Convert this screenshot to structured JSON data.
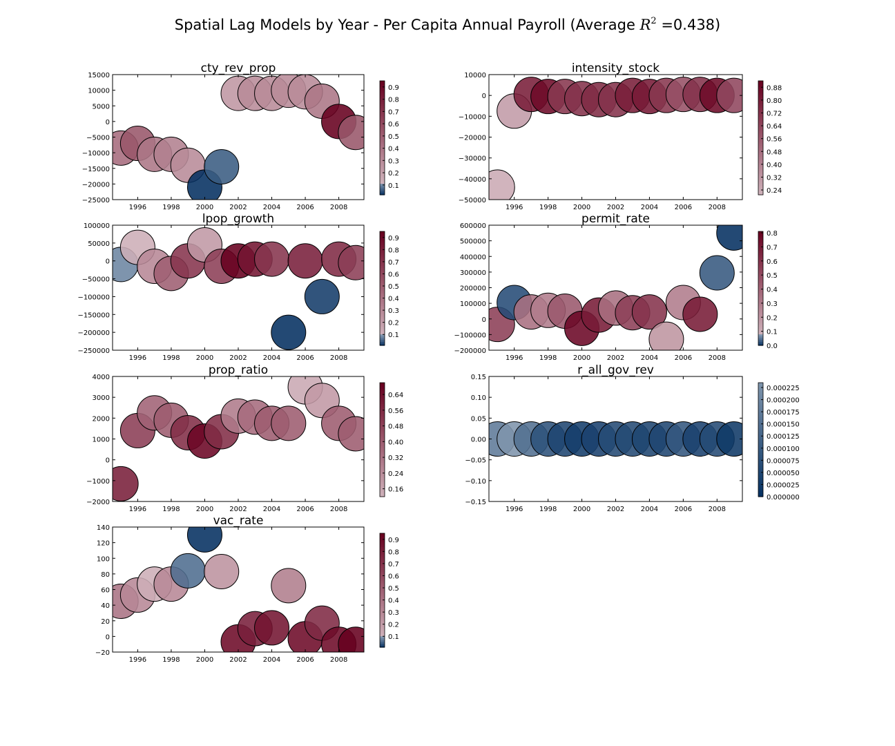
{
  "figure": {
    "suptitle_text": "Spatial Lag Models by Year - Per Capita Annual Payroll  (Average ",
    "suptitle_r": "R",
    "suptitle_exp": "2",
    "suptitle_value": " =0.438)"
  },
  "colormap": {
    "low": "#053061",
    "mid": "#f7f7f7",
    "high": "#67001f"
  },
  "chart_data": [
    {
      "type": "scatter",
      "title": "cty_rev_prop",
      "xlim": [
        1994.5,
        2009.5
      ],
      "ylim": [
        -25000,
        15000
      ],
      "xticks": [
        1996,
        1998,
        2000,
        2002,
        2004,
        2006,
        2008
      ],
      "xtick_labels": [
        "1996",
        "1998",
        "2000",
        "2002",
        "2004",
        "2006",
        "2008"
      ],
      "yticks": [
        -25000,
        -20000,
        -15000,
        -10000,
        -5000,
        0,
        5000,
        10000,
        15000
      ],
      "ytick_labels": [
        "−25000",
        "−20000",
        "−15000",
        "−10000",
        "−5000",
        "0",
        "5000",
        "10000",
        "15000"
      ],
      "points": [
        {
          "x": 1995,
          "y": -8500,
          "c": 0.45
        },
        {
          "x": 1996,
          "y": -7000,
          "c": 0.55
        },
        {
          "x": 1997,
          "y": -10500,
          "c": 0.4
        },
        {
          "x": 1998,
          "y": -10500,
          "c": 0.35
        },
        {
          "x": 1999,
          "y": -14000,
          "c": 0.3
        },
        {
          "x": 2000,
          "y": -21000,
          "c": 0.02
        },
        {
          "x": 2001,
          "y": -14500,
          "c": 0.06
        },
        {
          "x": 2002,
          "y": 9000,
          "c": 0.25
        },
        {
          "x": 2003,
          "y": 9000,
          "c": 0.3
        },
        {
          "x": 2004,
          "y": 9000,
          "c": 0.3
        },
        {
          "x": 2005,
          "y": 10000,
          "c": 0.3
        },
        {
          "x": 2006,
          "y": 9500,
          "c": 0.3
        },
        {
          "x": 2007,
          "y": 6500,
          "c": 0.4
        },
        {
          "x": 2008,
          "y": 0,
          "c": 0.95
        },
        {
          "x": 2009,
          "y": -3500,
          "c": 0.55
        }
      ],
      "colorbar": {
        "ticks": [
          0.1,
          0.2,
          0.3,
          0.4,
          0.5,
          0.6,
          0.7,
          0.8,
          0.9
        ],
        "tick_labels": [
          "0.1",
          "0.2",
          "0.3",
          "0.4",
          "0.5",
          "0.6",
          "0.7",
          "0.8",
          "0.9"
        ],
        "range": [
          0.02,
          0.95
        ],
        "split": 0.12
      }
    },
    {
      "type": "scatter",
      "title": "intensity_stock",
      "xlim": [
        1994.5,
        2009.5
      ],
      "ylim": [
        -50000,
        10000
      ],
      "xticks": [
        1996,
        1998,
        2000,
        2002,
        2004,
        2006,
        2008
      ],
      "xtick_labels": [
        "1996",
        "1998",
        "2000",
        "2002",
        "2004",
        "2006",
        "2008"
      ],
      "yticks": [
        -50000,
        -40000,
        -30000,
        -20000,
        -10000,
        0,
        10000
      ],
      "ytick_labels": [
        "−50000",
        "−40000",
        "−30000",
        "−20000",
        "−10000",
        "0",
        "10000"
      ],
      "points": [
        {
          "x": 1995,
          "y": -44000,
          "c": 0.24
        },
        {
          "x": 1996,
          "y": -7500,
          "c": 0.3
        },
        {
          "x": 1997,
          "y": 500,
          "c": 0.8
        },
        {
          "x": 1998,
          "y": -500,
          "c": 0.88
        },
        {
          "x": 1999,
          "y": -500,
          "c": 0.7
        },
        {
          "x": 2000,
          "y": -1500,
          "c": 0.72
        },
        {
          "x": 2001,
          "y": -2000,
          "c": 0.75
        },
        {
          "x": 2002,
          "y": -2000,
          "c": 0.72
        },
        {
          "x": 2003,
          "y": 0,
          "c": 0.8
        },
        {
          "x": 2004,
          "y": -500,
          "c": 0.82
        },
        {
          "x": 2005,
          "y": 0,
          "c": 0.7
        },
        {
          "x": 2006,
          "y": 500,
          "c": 0.6
        },
        {
          "x": 2007,
          "y": 500,
          "c": 0.72
        },
        {
          "x": 2008,
          "y": 0,
          "c": 0.88
        },
        {
          "x": 2009,
          "y": 0,
          "c": 0.64
        }
      ],
      "colorbar": {
        "ticks": [
          0.24,
          0.32,
          0.4,
          0.48,
          0.56,
          0.64,
          0.72,
          0.8,
          0.88
        ],
        "tick_labels": [
          "0.24",
          "0.32",
          "0.40",
          "0.48",
          "0.56",
          "0.64",
          "0.72",
          "0.80",
          "0.88"
        ],
        "range": [
          0.21,
          0.92
        ],
        "split": null
      }
    },
    {
      "type": "scatter",
      "title": "lpop_growth",
      "xlim": [
        1994.5,
        2009.5
      ],
      "ylim": [
        -250000,
        100000
      ],
      "xticks": [
        1996,
        1998,
        2000,
        2002,
        2004,
        2006,
        2008
      ],
      "xtick_labels": [
        "1996",
        "1998",
        "2000",
        "2002",
        "2004",
        "2006",
        "2008"
      ],
      "yticks": [
        -250000,
        -200000,
        -150000,
        -100000,
        -50000,
        0,
        50000,
        100000
      ],
      "ytick_labels": [
        "−250000",
        "−200000",
        "−150000",
        "−100000",
        "−50000",
        "0",
        "50000",
        "100000"
      ],
      "points": [
        {
          "x": 1995,
          "y": -10000,
          "c": 0.08
        },
        {
          "x": 1996,
          "y": 38000,
          "c": 0.12
        },
        {
          "x": 1997,
          "y": -15000,
          "c": 0.3
        },
        {
          "x": 1998,
          "y": -35000,
          "c": 0.5
        },
        {
          "x": 1999,
          "y": 0,
          "c": 0.7
        },
        {
          "x": 2000,
          "y": 45000,
          "c": 0.22
        },
        {
          "x": 2001,
          "y": -15000,
          "c": 0.65
        },
        {
          "x": 2002,
          "y": 0,
          "c": 0.95
        },
        {
          "x": 2003,
          "y": 5000,
          "c": 0.85
        },
        {
          "x": 2004,
          "y": 5000,
          "c": 0.7
        },
        {
          "x": 2005,
          "y": -200000,
          "c": 0.01
        },
        {
          "x": 2006,
          "y": 0,
          "c": 0.8
        },
        {
          "x": 2007,
          "y": -100000,
          "c": 0.02
        },
        {
          "x": 2008,
          "y": 5000,
          "c": 0.75
        },
        {
          "x": 2009,
          "y": -5000,
          "c": 0.65
        }
      ],
      "colorbar": {
        "ticks": [
          0.1,
          0.2,
          0.3,
          0.4,
          0.5,
          0.6,
          0.7,
          0.8,
          0.9
        ],
        "tick_labels": [
          "0.1",
          "0.2",
          "0.3",
          "0.4",
          "0.5",
          "0.6",
          "0.7",
          "0.8",
          "0.9"
        ],
        "range": [
          0.01,
          0.95
        ],
        "split": 0.1
      }
    },
    {
      "type": "scatter",
      "title": "permit_rate",
      "xlim": [
        1994.5,
        2009.5
      ],
      "ylim": [
        -200000,
        600000
      ],
      "xticks": [
        1996,
        1998,
        2000,
        2002,
        2004,
        2006,
        2008
      ],
      "xtick_labels": [
        "1996",
        "1998",
        "2000",
        "2002",
        "2004",
        "2006",
        "2008"
      ],
      "yticks": [
        -200000,
        -100000,
        0,
        100000,
        200000,
        300000,
        400000,
        500000,
        600000
      ],
      "ytick_labels": [
        "−200000",
        "−100000",
        "0",
        "100000",
        "200000",
        "300000",
        "400000",
        "500000",
        "600000"
      ],
      "points": [
        {
          "x": 1995,
          "y": -35000,
          "c": 0.55
        },
        {
          "x": 1996,
          "y": 105000,
          "c": 0.02
        },
        {
          "x": 1997,
          "y": 45000,
          "c": 0.35
        },
        {
          "x": 1998,
          "y": 55000,
          "c": 0.3
        },
        {
          "x": 1999,
          "y": 50000,
          "c": 0.45
        },
        {
          "x": 2000,
          "y": -60000,
          "c": 0.78
        },
        {
          "x": 2001,
          "y": 25000,
          "c": 0.7
        },
        {
          "x": 2002,
          "y": 70000,
          "c": 0.35
        },
        {
          "x": 2003,
          "y": 40000,
          "c": 0.55
        },
        {
          "x": 2004,
          "y": 45000,
          "c": 0.6
        },
        {
          "x": 2005,
          "y": -130000,
          "c": 0.2
        },
        {
          "x": 2006,
          "y": 105000,
          "c": 0.3
        },
        {
          "x": 2007,
          "y": 30000,
          "c": 0.7
        },
        {
          "x": 2008,
          "y": 295000,
          "c": 0.03
        },
        {
          "x": 2009,
          "y": 550000,
          "c": 0.0
        }
      ],
      "colorbar": {
        "ticks": [
          0.0,
          0.1,
          0.2,
          0.3,
          0.4,
          0.5,
          0.6,
          0.7,
          0.8
        ],
        "tick_labels": [
          "0.0",
          "0.1",
          "0.2",
          "0.3",
          "0.4",
          "0.5",
          "0.6",
          "0.7",
          "0.8"
        ],
        "range": [
          0.0,
          0.81
        ],
        "split": 0.08
      }
    },
    {
      "type": "scatter",
      "title": "prop_ratio",
      "xlim": [
        1994.5,
        2009.5
      ],
      "ylim": [
        -2000,
        4000
      ],
      "xticks": [
        1996,
        1998,
        2000,
        2002,
        2004,
        2006,
        2008
      ],
      "xtick_labels": [
        "1996",
        "1998",
        "2000",
        "2002",
        "2004",
        "2006",
        "2008"
      ],
      "yticks": [
        -2000,
        -1000,
        0,
        1000,
        2000,
        3000,
        4000
      ],
      "ytick_labels": [
        "−2000",
        "−1000",
        "0",
        "1000",
        "2000",
        "3000",
        "4000"
      ],
      "points": [
        {
          "x": 1995,
          "y": -1150,
          "c": 0.6
        },
        {
          "x": 1996,
          "y": 1400,
          "c": 0.5
        },
        {
          "x": 1997,
          "y": 2250,
          "c": 0.38
        },
        {
          "x": 1998,
          "y": 1900,
          "c": 0.4
        },
        {
          "x": 1999,
          "y": 1300,
          "c": 0.55
        },
        {
          "x": 2000,
          "y": 900,
          "c": 0.68
        },
        {
          "x": 2001,
          "y": 1350,
          "c": 0.55
        },
        {
          "x": 2002,
          "y": 2100,
          "c": 0.3
        },
        {
          "x": 2003,
          "y": 2050,
          "c": 0.35
        },
        {
          "x": 2004,
          "y": 1750,
          "c": 0.4
        },
        {
          "x": 2005,
          "y": 1750,
          "c": 0.4
        },
        {
          "x": 2006,
          "y": 3500,
          "c": 0.15
        },
        {
          "x": 2007,
          "y": 2850,
          "c": 0.2
        },
        {
          "x": 2008,
          "y": 1750,
          "c": 0.4
        },
        {
          "x": 2009,
          "y": 1250,
          "c": 0.4
        }
      ],
      "colorbar": {
        "ticks": [
          0.16,
          0.24,
          0.32,
          0.4,
          0.48,
          0.56,
          0.64
        ],
        "tick_labels": [
          "0.16",
          "0.24",
          "0.32",
          "0.40",
          "0.48",
          "0.56",
          "0.64"
        ],
        "range": [
          0.12,
          0.7
        ],
        "split": null
      }
    },
    {
      "type": "scatter",
      "title": "r_all_gov_rev",
      "xlim": [
        1994.5,
        2009.5
      ],
      "ylim": [
        -0.15,
        0.15
      ],
      "xticks": [
        1996,
        1998,
        2000,
        2002,
        2004,
        2006,
        2008
      ],
      "xtick_labels": [
        "1996",
        "1998",
        "2000",
        "2002",
        "2004",
        "2006",
        "2008"
      ],
      "yticks": [
        -0.15,
        -0.1,
        -0.05,
        0.0,
        0.05,
        0.1,
        0.15
      ],
      "ytick_labels": [
        "−0.15",
        "−0.10",
        "−0.05",
        "0.00",
        "0.05",
        "0.10",
        "0.15"
      ],
      "points": [
        {
          "x": 1995,
          "y": 0,
          "c": 0.000175
        },
        {
          "x": 1996,
          "y": 0,
          "c": 0.00024
        },
        {
          "x": 1997,
          "y": 0,
          "c": 0.00015
        },
        {
          "x": 1998,
          "y": 0,
          "c": 8e-05
        },
        {
          "x": 1999,
          "y": 0,
          "c": 5e-05
        },
        {
          "x": 2000,
          "y": 0,
          "c": 3e-05
        },
        {
          "x": 2001,
          "y": 0,
          "c": 4e-05
        },
        {
          "x": 2002,
          "y": 0,
          "c": 6e-05
        },
        {
          "x": 2003,
          "y": 0,
          "c": 6e-05
        },
        {
          "x": 2004,
          "y": 0,
          "c": 5e-05
        },
        {
          "x": 2005,
          "y": 0,
          "c": 5e-05
        },
        {
          "x": 2006,
          "y": 0,
          "c": 9e-05
        },
        {
          "x": 2007,
          "y": 0,
          "c": 4e-05
        },
        {
          "x": 2008,
          "y": 0,
          "c": 6e-05
        },
        {
          "x": 2009,
          "y": 0,
          "c": 2e-05
        }
      ],
      "colorbar": {
        "ticks": [
          0.0,
          2.5e-05,
          5e-05,
          7.5e-05,
          0.0001,
          0.000125,
          0.00015,
          0.000175,
          0.0002,
          0.000225
        ],
        "tick_labels": [
          "0.000000",
          "0.000025",
          "0.000050",
          "0.000075",
          "0.000100",
          "0.000125",
          "0.000150",
          "0.000175",
          "0.000200",
          "0.000225"
        ],
        "range": [
          0.0,
          0.000235
        ],
        "split": null
      }
    },
    {
      "type": "scatter",
      "title": "vac_rate",
      "xlim": [
        1994.5,
        2009.5
      ],
      "ylim": [
        -20,
        140
      ],
      "xticks": [
        1996,
        1998,
        2000,
        2002,
        2004,
        2006,
        2008
      ],
      "xtick_labels": [
        "1996",
        "1998",
        "2000",
        "2002",
        "2004",
        "2006",
        "2008"
      ],
      "yticks": [
        -20,
        0,
        20,
        40,
        60,
        80,
        100,
        120,
        140
      ],
      "ytick_labels": [
        "−20",
        "0",
        "20",
        "40",
        "60",
        "80",
        "100",
        "120",
        "140"
      ],
      "points": [
        {
          "x": 1995,
          "y": 45,
          "c": 0.4
        },
        {
          "x": 1996,
          "y": 53,
          "c": 0.3
        },
        {
          "x": 1997,
          "y": 67,
          "c": 0.12
        },
        {
          "x": 1998,
          "y": 67,
          "c": 0.3
        },
        {
          "x": 1999,
          "y": 84,
          "c": 0.06
        },
        {
          "x": 2000,
          "y": 130,
          "c": 0.01
        },
        {
          "x": 2001,
          "y": 83,
          "c": 0.25
        },
        {
          "x": 2002,
          "y": -7,
          "c": 0.9
        },
        {
          "x": 2003,
          "y": 10,
          "c": 0.8
        },
        {
          "x": 2004,
          "y": 11,
          "c": 0.85
        },
        {
          "x": 2005,
          "y": 65,
          "c": 0.35
        },
        {
          "x": 2006,
          "y": -3,
          "c": 0.9
        },
        {
          "x": 2007,
          "y": 17,
          "c": 0.75
        },
        {
          "x": 2008,
          "y": -10,
          "c": 0.9
        },
        {
          "x": 2009,
          "y": -10,
          "c": 0.95
        }
      ],
      "colorbar": {
        "ticks": [
          0.1,
          0.2,
          0.3,
          0.4,
          0.5,
          0.6,
          0.7,
          0.8,
          0.9
        ],
        "tick_labels": [
          "0.1",
          "0.2",
          "0.3",
          "0.4",
          "0.5",
          "0.6",
          "0.7",
          "0.8",
          "0.9"
        ],
        "range": [
          0.01,
          0.95
        ],
        "split": 0.1
      }
    }
  ]
}
